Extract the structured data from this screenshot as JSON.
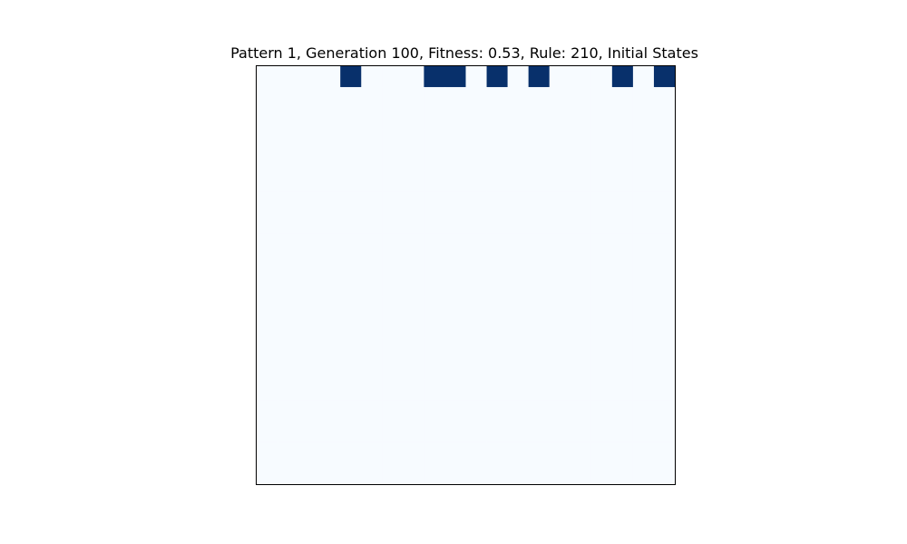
{
  "chart_data": {
    "type": "heatmap",
    "title": "Pattern 1, Generation 100, Fitness: 0.53, Rule: 210, Initial States",
    "xlabel": "",
    "ylabel": "",
    "grid": false,
    "colormap": "Blues",
    "colors": {
      "off": "#f7fbff",
      "on": "#08306b"
    },
    "rows": 20,
    "cols": 20,
    "values": [
      [
        0,
        0,
        0,
        0,
        1,
        0,
        0,
        0,
        1,
        1,
        0,
        1,
        0,
        1,
        0,
        0,
        0,
        1,
        0,
        1
      ],
      [
        0,
        0,
        0,
        0,
        0,
        0,
        0,
        0,
        0,
        0,
        0,
        0,
        0,
        0,
        0,
        0,
        0,
        0,
        0,
        0
      ],
      [
        0,
        0,
        0,
        0,
        0,
        0,
        0,
        0,
        0,
        0,
        0,
        0,
        0,
        0,
        0,
        0,
        0,
        0,
        0,
        0
      ],
      [
        0,
        0,
        0,
        0,
        0,
        0,
        0,
        0,
        0,
        0,
        0,
        0,
        0,
        0,
        0,
        0,
        0,
        0,
        0,
        0
      ],
      [
        0,
        0,
        0,
        0,
        0,
        0,
        0,
        0,
        0,
        0,
        0,
        0,
        0,
        0,
        0,
        0,
        0,
        0,
        0,
        0
      ],
      [
        0,
        0,
        0,
        0,
        0,
        0,
        0,
        0,
        0,
        0,
        0,
        0,
        0,
        0,
        0,
        0,
        0,
        0,
        0,
        0
      ],
      [
        0,
        0,
        0,
        0,
        0,
        0,
        0,
        0,
        0,
        0,
        0,
        0,
        0,
        0,
        0,
        0,
        0,
        0,
        0,
        0
      ],
      [
        0,
        0,
        0,
        0,
        0,
        0,
        0,
        0,
        0,
        0,
        0,
        0,
        0,
        0,
        0,
        0,
        0,
        0,
        0,
        0
      ],
      [
        0,
        0,
        0,
        0,
        0,
        0,
        0,
        0,
        0,
        0,
        0,
        0,
        0,
        0,
        0,
        0,
        0,
        0,
        0,
        0
      ],
      [
        0,
        0,
        0,
        0,
        0,
        0,
        0,
        0,
        0,
        0,
        0,
        0,
        0,
        0,
        0,
        0,
        0,
        0,
        0,
        0
      ],
      [
        0,
        0,
        0,
        0,
        0,
        0,
        0,
        0,
        0,
        0,
        0,
        0,
        0,
        0,
        0,
        0,
        0,
        0,
        0,
        0
      ],
      [
        0,
        0,
        0,
        0,
        0,
        0,
        0,
        0,
        0,
        0,
        0,
        0,
        0,
        0,
        0,
        0,
        0,
        0,
        0,
        0
      ],
      [
        0,
        0,
        0,
        0,
        0,
        0,
        0,
        0,
        0,
        0,
        0,
        0,
        0,
        0,
        0,
        0,
        0,
        0,
        0,
        0
      ],
      [
        0,
        0,
        0,
        0,
        0,
        0,
        0,
        0,
        0,
        0,
        0,
        0,
        0,
        0,
        0,
        0,
        0,
        0,
        0,
        0
      ],
      [
        0,
        0,
        0,
        0,
        0,
        0,
        0,
        0,
        0,
        0,
        0,
        0,
        0,
        0,
        0,
        0,
        0,
        0,
        0,
        0
      ],
      [
        0,
        0,
        0,
        0,
        0,
        0,
        0,
        0,
        0,
        0,
        0,
        0,
        0,
        0,
        0,
        0,
        0,
        0,
        0,
        0
      ],
      [
        0,
        0,
        0,
        0,
        0,
        0,
        0,
        0,
        0,
        0,
        0,
        0,
        0,
        0,
        0,
        0,
        0,
        0,
        0,
        0
      ],
      [
        0,
        0,
        0,
        0,
        0,
        0,
        0,
        0,
        0,
        0,
        0,
        0,
        0,
        0,
        0,
        0,
        0,
        0,
        0,
        0
      ],
      [
        0,
        0,
        0,
        0,
        0,
        0,
        0,
        0,
        0,
        0,
        0,
        0,
        0,
        0,
        0,
        0,
        0,
        0,
        0,
        0
      ],
      [
        0,
        0,
        0,
        0,
        0,
        0,
        0,
        0,
        0,
        0,
        0,
        0,
        0,
        0,
        0,
        0,
        0,
        0,
        0,
        0
      ]
    ]
  }
}
